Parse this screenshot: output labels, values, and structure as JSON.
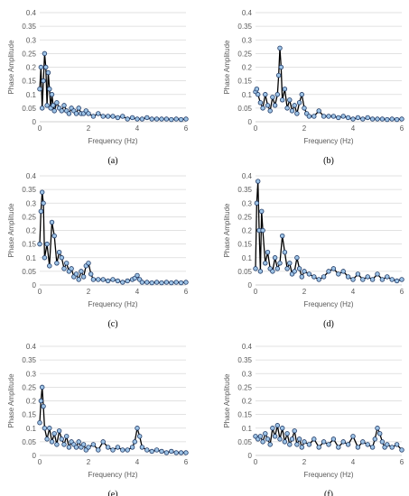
{
  "figure": {
    "colors": {
      "grid": "#d9d9d9",
      "axis": "#bfbfbf",
      "line": "#000000",
      "marker_fill": "#9dc3e6",
      "marker_stroke": "#1f3864",
      "text": "#595959"
    }
  },
  "chart_data": [
    {
      "type": "line",
      "panel_label": "(a)",
      "xlabel": "Frequency (Hz)",
      "ylabel": "Phase Amplitude",
      "xlim": [
        0,
        6
      ],
      "ylim": [
        0,
        0.4
      ],
      "xticks": [
        "0",
        "2",
        "4",
        "6"
      ],
      "yticks": [
        "0",
        "0.05",
        "0.1",
        "0.15",
        "0.2",
        "0.25",
        "0.3",
        "0.35",
        "0.4"
      ],
      "grid": true,
      "marker": "circle",
      "series": [
        {
          "x": [
            0,
            0.05,
            0.1,
            0.15,
            0.2,
            0.25,
            0.3,
            0.35,
            0.4,
            0.45,
            0.5,
            0.55,
            0.6,
            0.7,
            0.8,
            0.9,
            1.0,
            1.1,
            1.2,
            1.3,
            1.4,
            1.5,
            1.6,
            1.7,
            1.8,
            1.9,
            2.0,
            2.2,
            2.4,
            2.6,
            2.8,
            3.0,
            3.2,
            3.4,
            3.6,
            3.8,
            4.0,
            4.2,
            4.4,
            4.6,
            4.8,
            5.0,
            5.2,
            5.4,
            5.6,
            5.8,
            6.0
          ],
          "y": [
            0.12,
            0.2,
            0.05,
            0.15,
            0.25,
            0.2,
            0.06,
            0.18,
            0.12,
            0.05,
            0.1,
            0.06,
            0.04,
            0.07,
            0.05,
            0.04,
            0.06,
            0.04,
            0.03,
            0.05,
            0.04,
            0.03,
            0.05,
            0.03,
            0.03,
            0.04,
            0.03,
            0.02,
            0.03,
            0.02,
            0.02,
            0.02,
            0.015,
            0.02,
            0.01,
            0.015,
            0.01,
            0.01,
            0.015,
            0.01,
            0.01,
            0.01,
            0.01,
            0.008,
            0.01,
            0.008,
            0.01
          ]
        }
      ]
    },
    {
      "type": "line",
      "panel_label": "(b)",
      "xlabel": "Frequency (Hz)",
      "ylabel": "Phase Amplitude",
      "xlim": [
        0,
        6
      ],
      "ylim": [
        0,
        0.4
      ],
      "xticks": [
        "0",
        "2",
        "4",
        "6"
      ],
      "yticks": [
        "0",
        "0.05",
        "0.1",
        "0.15",
        "0.2",
        "0.25",
        "0.3",
        "0.35",
        "0.4"
      ],
      "grid": true,
      "marker": "circle",
      "series": [
        {
          "x": [
            0,
            0.05,
            0.1,
            0.2,
            0.3,
            0.4,
            0.5,
            0.6,
            0.7,
            0.8,
            0.9,
            0.95,
            1.0,
            1.05,
            1.1,
            1.2,
            1.3,
            1.4,
            1.5,
            1.6,
            1.7,
            1.8,
            1.9,
            2.0,
            2.1,
            2.2,
            2.4,
            2.6,
            2.8,
            3.0,
            3.2,
            3.4,
            3.6,
            3.8,
            4.0,
            4.2,
            4.4,
            4.6,
            4.8,
            5.0,
            5.2,
            5.4,
            5.6,
            5.8,
            6.0
          ],
          "y": [
            0.11,
            0.12,
            0.1,
            0.07,
            0.05,
            0.1,
            0.06,
            0.04,
            0.09,
            0.06,
            0.1,
            0.17,
            0.27,
            0.2,
            0.08,
            0.12,
            0.05,
            0.08,
            0.04,
            0.06,
            0.03,
            0.07,
            0.1,
            0.05,
            0.03,
            0.02,
            0.02,
            0.04,
            0.02,
            0.02,
            0.02,
            0.015,
            0.02,
            0.015,
            0.01,
            0.015,
            0.01,
            0.015,
            0.01,
            0.01,
            0.01,
            0.008,
            0.01,
            0.008,
            0.01
          ]
        }
      ]
    },
    {
      "type": "line",
      "panel_label": "(c)",
      "xlabel": "Frequency (Hz)",
      "ylabel": "Phase Amplitude",
      "xlim": [
        0,
        6
      ],
      "ylim": [
        0,
        0.4
      ],
      "xticks": [
        "0",
        "2",
        "4",
        "6"
      ],
      "yticks": [
        "0",
        "0.05",
        "0.1",
        "0.15",
        "0.2",
        "0.25",
        "0.3",
        "0.35",
        "0.4"
      ],
      "grid": true,
      "marker": "circle",
      "series": [
        {
          "x": [
            0,
            0.05,
            0.1,
            0.15,
            0.2,
            0.3,
            0.4,
            0.5,
            0.6,
            0.7,
            0.8,
            0.9,
            1.0,
            1.1,
            1.2,
            1.3,
            1.4,
            1.5,
            1.6,
            1.7,
            1.8,
            1.9,
            2.0,
            2.1,
            2.2,
            2.4,
            2.6,
            2.8,
            3.0,
            3.2,
            3.4,
            3.6,
            3.8,
            3.9,
            4.0,
            4.1,
            4.2,
            4.4,
            4.6,
            4.8,
            5.0,
            5.2,
            5.4,
            5.6,
            5.8,
            6.0
          ],
          "y": [
            0.15,
            0.27,
            0.34,
            0.3,
            0.1,
            0.15,
            0.07,
            0.23,
            0.18,
            0.08,
            0.12,
            0.1,
            0.06,
            0.08,
            0.05,
            0.06,
            0.03,
            0.04,
            0.02,
            0.05,
            0.03,
            0.07,
            0.08,
            0.04,
            0.02,
            0.02,
            0.02,
            0.015,
            0.02,
            0.015,
            0.01,
            0.015,
            0.02,
            0.025,
            0.035,
            0.02,
            0.01,
            0.01,
            0.008,
            0.01,
            0.008,
            0.01,
            0.008,
            0.01,
            0.008,
            0.01
          ]
        }
      ]
    },
    {
      "type": "line",
      "panel_label": "(d)",
      "xlabel": "Frequency (Hz)",
      "ylabel": "Phase Amplitude",
      "xlim": [
        0,
        6
      ],
      "ylim": [
        0,
        0.4
      ],
      "xticks": [
        "0",
        "2",
        "4",
        "6"
      ],
      "yticks": [
        "0",
        "0.05",
        "0.1",
        "0.15",
        "0.2",
        "0.25",
        "0.3",
        "0.35",
        "0.4"
      ],
      "grid": true,
      "marker": "circle",
      "series": [
        {
          "x": [
            0,
            0.05,
            0.1,
            0.15,
            0.2,
            0.25,
            0.3,
            0.4,
            0.5,
            0.6,
            0.7,
            0.8,
            0.9,
            1.0,
            1.1,
            1.2,
            1.3,
            1.4,
            1.5,
            1.6,
            1.7,
            1.8,
            1.9,
            2.0,
            2.2,
            2.4,
            2.6,
            2.8,
            3.0,
            3.2,
            3.4,
            3.6,
            3.8,
            4.0,
            4.2,
            4.4,
            4.6,
            4.8,
            5.0,
            5.2,
            5.4,
            5.6,
            5.8,
            6.0
          ],
          "y": [
            0.06,
            0.3,
            0.38,
            0.2,
            0.05,
            0.27,
            0.2,
            0.08,
            0.12,
            0.06,
            0.05,
            0.1,
            0.06,
            0.08,
            0.18,
            0.12,
            0.06,
            0.08,
            0.04,
            0.05,
            0.1,
            0.06,
            0.03,
            0.05,
            0.04,
            0.03,
            0.02,
            0.03,
            0.05,
            0.06,
            0.04,
            0.05,
            0.03,
            0.02,
            0.04,
            0.02,
            0.03,
            0.02,
            0.04,
            0.02,
            0.03,
            0.02,
            0.015,
            0.02
          ]
        }
      ]
    },
    {
      "type": "line",
      "panel_label": "(e)",
      "xlabel": "Frequency (Hz)",
      "ylabel": "Phase Amplitude",
      "xlim": [
        0,
        6
      ],
      "ylim": [
        0,
        0.4
      ],
      "xticks": [
        "0",
        "2",
        "4",
        "6"
      ],
      "yticks": [
        "0",
        "0.05",
        "0.1",
        "0.15",
        "0.2",
        "0.25",
        "0.3",
        "0.35",
        "0.4"
      ],
      "grid": true,
      "marker": "circle",
      "series": [
        {
          "x": [
            0,
            0.05,
            0.1,
            0.15,
            0.2,
            0.3,
            0.4,
            0.5,
            0.6,
            0.7,
            0.8,
            0.9,
            1.0,
            1.1,
            1.2,
            1.3,
            1.4,
            1.5,
            1.6,
            1.7,
            1.8,
            1.9,
            2.0,
            2.2,
            2.4,
            2.6,
            2.8,
            3.0,
            3.2,
            3.4,
            3.6,
            3.8,
            3.9,
            4.0,
            4.1,
            4.2,
            4.4,
            4.6,
            4.8,
            5.0,
            5.2,
            5.4,
            5.6,
            5.8,
            6.0
          ],
          "y": [
            0.12,
            0.2,
            0.25,
            0.18,
            0.1,
            0.06,
            0.1,
            0.05,
            0.08,
            0.04,
            0.09,
            0.06,
            0.04,
            0.07,
            0.03,
            0.05,
            0.04,
            0.03,
            0.05,
            0.03,
            0.04,
            0.02,
            0.03,
            0.04,
            0.02,
            0.05,
            0.03,
            0.02,
            0.03,
            0.02,
            0.02,
            0.03,
            0.05,
            0.1,
            0.07,
            0.03,
            0.02,
            0.015,
            0.02,
            0.015,
            0.01,
            0.015,
            0.01,
            0.01,
            0.01
          ]
        }
      ]
    },
    {
      "type": "line",
      "panel_label": "(f)",
      "xlabel": "Frequency (Hz)",
      "ylabel": "Phase Amplitude",
      "xlim": [
        0,
        6
      ],
      "ylim": [
        0,
        0.4
      ],
      "xticks": [
        "0",
        "2",
        "4",
        "6"
      ],
      "yticks": [
        "0",
        "0.05",
        "0.1",
        "0.15",
        "0.2",
        "0.25",
        "0.3",
        "0.35",
        "0.4"
      ],
      "grid": true,
      "marker": "circle",
      "series": [
        {
          "x": [
            0,
            0.1,
            0.2,
            0.3,
            0.4,
            0.5,
            0.6,
            0.7,
            0.8,
            0.9,
            1.0,
            1.1,
            1.2,
            1.3,
            1.4,
            1.5,
            1.6,
            1.7,
            1.8,
            1.9,
            2.0,
            2.2,
            2.4,
            2.6,
            2.8,
            3.0,
            3.2,
            3.4,
            3.6,
            3.8,
            4.0,
            4.2,
            4.4,
            4.6,
            4.8,
            4.9,
            5.0,
            5.1,
            5.2,
            5.3,
            5.4,
            5.6,
            5.8,
            6.0
          ],
          "y": [
            0.07,
            0.06,
            0.07,
            0.05,
            0.08,
            0.06,
            0.04,
            0.1,
            0.07,
            0.11,
            0.06,
            0.1,
            0.05,
            0.08,
            0.04,
            0.06,
            0.09,
            0.04,
            0.06,
            0.03,
            0.05,
            0.04,
            0.06,
            0.03,
            0.05,
            0.04,
            0.06,
            0.03,
            0.05,
            0.04,
            0.07,
            0.03,
            0.05,
            0.04,
            0.03,
            0.06,
            0.1,
            0.08,
            0.05,
            0.03,
            0.04,
            0.03,
            0.04,
            0.02
          ]
        }
      ]
    }
  ]
}
